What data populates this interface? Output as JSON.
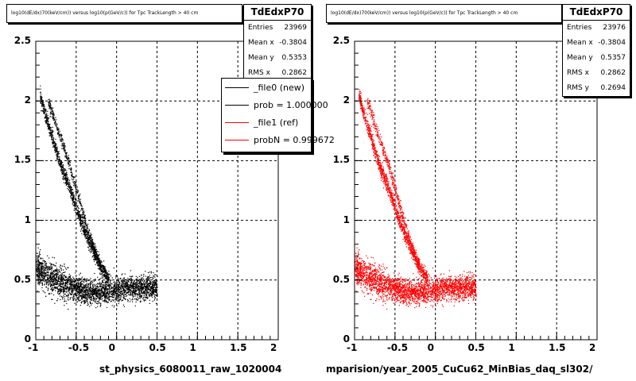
{
  "chart_data": [
    {
      "type": "scatter",
      "title": "log10(dE/dx)70(keV/cm)) versus log10(p(GeV/c)) for Tpc TrackLength > 40 cm",
      "xlabel": "st_physics_6080011_raw_1020004",
      "ylabel": "",
      "xlim": [
        -1,
        2
      ],
      "ylim": [
        0,
        2.5
      ],
      "xticks": [
        -1,
        -0.5,
        0,
        0.5,
        1,
        1.5,
        2
      ],
      "yticks": [
        0,
        0.5,
        1,
        1.5,
        2,
        2.5
      ],
      "xtick_labels": [
        "-1",
        "-0.5",
        "0",
        "0.5",
        "1",
        "1.5",
        "2"
      ],
      "ytick_labels": [
        "0",
        "0.5",
        "1",
        "1.5",
        "2",
        "2.5"
      ],
      "grid": true,
      "color": "#000000",
      "stats": {
        "name": "TdEdxP70",
        "rows": [
          {
            "label": "Entries",
            "value": "23969"
          },
          {
            "label": "Mean x",
            "value": "-0.3804"
          },
          {
            "label": "Mean y",
            "value": "0.5353"
          },
          {
            "label": "RMS x",
            "value": "0.2862"
          }
        ]
      },
      "legend": [
        {
          "label": "_file0 (new)",
          "color": "#000000"
        },
        {
          "label": "prob = 1.000000",
          "color": "#000000"
        },
        {
          "label": "_file1 (ref)",
          "color": "#ff0000"
        },
        {
          "label": "probN = 0.999672",
          "color": "#ff0000"
        }
      ],
      "series": [
        {
          "x": [
            -0.95,
            -0.9,
            -0.85,
            -0.8,
            -0.75,
            -0.7,
            -0.65,
            -0.6,
            -0.55,
            -0.5,
            -0.45,
            -0.4,
            -0.35,
            -0.3,
            -0.25,
            -0.2,
            -0.15,
            -0.1
          ],
          "y": [
            2.05,
            1.92,
            1.8,
            1.7,
            1.58,
            1.47,
            1.38,
            1.3,
            1.2,
            1.1,
            1.0,
            0.92,
            0.84,
            0.76,
            0.69,
            0.62,
            0.56,
            0.51
          ]
        },
        {
          "x": [
            -0.85,
            -0.8,
            -0.75,
            -0.7,
            -0.65,
            -0.6,
            -0.55,
            -0.5,
            -0.45,
            -0.4,
            -0.35,
            -0.3,
            -0.25,
            -0.2
          ],
          "y": [
            2.0,
            1.9,
            1.8,
            1.7,
            1.6,
            1.5,
            1.38,
            1.26,
            1.14,
            1.02,
            0.9,
            0.8,
            0.7,
            0.6
          ]
        },
        {
          "x": [
            -1.0,
            -0.9,
            -0.8,
            -0.7,
            -0.6,
            -0.5,
            -0.4,
            -0.3,
            -0.2,
            -0.1,
            0.0,
            0.1,
            0.2,
            0.3,
            0.4,
            0.5
          ],
          "y": [
            0.6,
            0.55,
            0.52,
            0.49,
            0.46,
            0.43,
            0.41,
            0.4,
            0.4,
            0.41,
            0.42,
            0.43,
            0.44,
            0.44,
            0.44,
            0.43
          ]
        }
      ]
    },
    {
      "type": "scatter",
      "title": "log10(dE/dx)70(keV/cm)) versus log10(p(GeV/c)) for Tpc TrackLength > 40 cm",
      "xlabel": "mparision/year_2005_CuCu62_MinBias_daq_sl302/",
      "ylabel": "",
      "xlim": [
        -1,
        2
      ],
      "ylim": [
        0,
        2.5
      ],
      "xticks": [
        -1,
        -0.5,
        0,
        0.5,
        1,
        1.5,
        2
      ],
      "yticks": [
        0,
        0.5,
        1,
        1.5,
        2,
        2.5
      ],
      "xtick_labels": [
        "-1",
        "-0.5",
        "0",
        "0.5",
        "1",
        "1.5",
        "2"
      ],
      "ytick_labels": [
        "0",
        "0.5",
        "1",
        "1.5",
        "2",
        "2.5"
      ],
      "grid": true,
      "color": "#ff0000",
      "stats": {
        "name": "TdEdxP70",
        "rows": [
          {
            "label": "Entries",
            "value": "23976"
          },
          {
            "label": "Mean x",
            "value": "-0.3804"
          },
          {
            "label": "Mean y",
            "value": "0.5357"
          },
          {
            "label": "RMS x",
            "value": "0.2862"
          },
          {
            "label": "RMS y",
            "value": "0.2694"
          }
        ]
      },
      "legend": [],
      "series": [
        {
          "x": [
            -0.95,
            -0.9,
            -0.85,
            -0.8,
            -0.75,
            -0.7,
            -0.65,
            -0.6,
            -0.55,
            -0.5,
            -0.45,
            -0.4,
            -0.35,
            -0.3,
            -0.25,
            -0.2,
            -0.15,
            -0.1
          ],
          "y": [
            2.05,
            1.92,
            1.8,
            1.7,
            1.58,
            1.47,
            1.38,
            1.3,
            1.2,
            1.1,
            1.0,
            0.92,
            0.84,
            0.76,
            0.69,
            0.62,
            0.56,
            0.51
          ]
        },
        {
          "x": [
            -0.85,
            -0.8,
            -0.75,
            -0.7,
            -0.65,
            -0.6,
            -0.55,
            -0.5,
            -0.45,
            -0.4,
            -0.35,
            -0.3,
            -0.25,
            -0.2
          ],
          "y": [
            2.0,
            1.9,
            1.8,
            1.7,
            1.6,
            1.5,
            1.38,
            1.26,
            1.14,
            1.02,
            0.9,
            0.8,
            0.7,
            0.6
          ]
        },
        {
          "x": [
            -1.0,
            -0.9,
            -0.8,
            -0.7,
            -0.6,
            -0.5,
            -0.4,
            -0.3,
            -0.2,
            -0.1,
            0.0,
            0.1,
            0.2,
            0.3,
            0.4,
            0.5
          ],
          "y": [
            0.6,
            0.55,
            0.52,
            0.49,
            0.46,
            0.43,
            0.41,
            0.4,
            0.4,
            0.41,
            0.42,
            0.43,
            0.44,
            0.44,
            0.44,
            0.43
          ]
        }
      ]
    }
  ]
}
